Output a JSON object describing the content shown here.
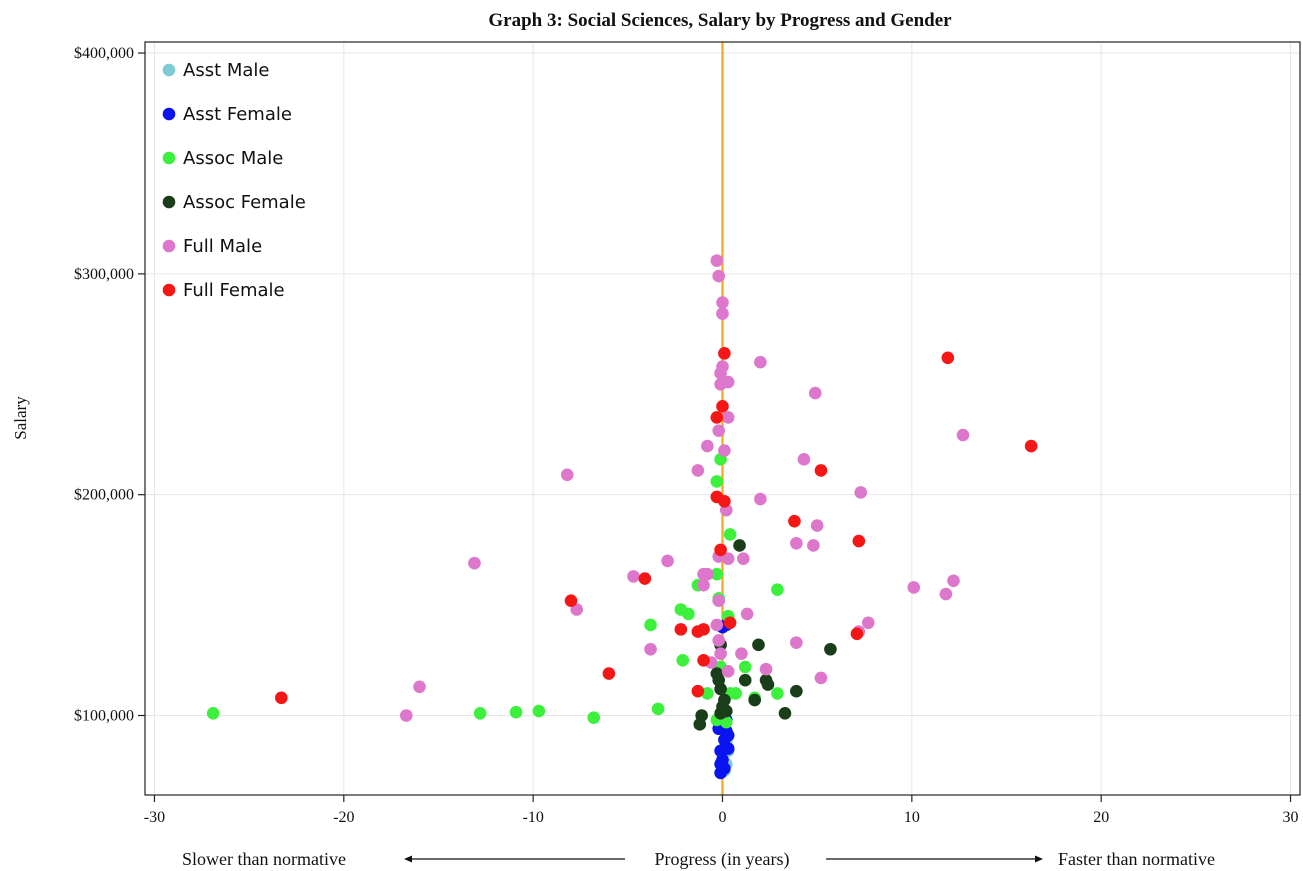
{
  "chart_data": {
    "type": "scatter",
    "title": "Graph 3: Social Sciences, Salary by Progress and Gender",
    "ylabel": "Salary",
    "xlabel": "Progress (in years)",
    "xlabel_left": "Slower than normative",
    "xlabel_right": "Faster than normative",
    "xlim": [
      -30.5,
      30.5
    ],
    "ylim": [
      64000,
      405000
    ],
    "x_ticks": [
      -30,
      -20,
      -10,
      0,
      10,
      20,
      30
    ],
    "x_tick_labels": [
      "-30",
      "-20",
      "-10",
      "0",
      "10",
      "20",
      "30"
    ],
    "y_ticks": [
      100000,
      200000,
      300000,
      400000
    ],
    "y_tick_labels": [
      "$100,000",
      "$200,000",
      "$300,000",
      "$400,000"
    ],
    "grid": true,
    "legend_position": "top-left",
    "reference_line": {
      "x": 0,
      "color": "#f5a623"
    },
    "series": [
      {
        "name": "Asst Male",
        "color": "#7ecbd3",
        "points": [
          [
            0.1,
            75000
          ],
          [
            0.2,
            78000
          ],
          [
            0.3,
            84000
          ],
          [
            0.2,
            88000
          ]
        ]
      },
      {
        "name": "Asst Female",
        "color": "#0a14f0",
        "points": [
          [
            0.0,
            140000
          ],
          [
            0.2,
            141000
          ],
          [
            -0.2,
            94000
          ],
          [
            0.2,
            93000
          ],
          [
            0.3,
            91000
          ],
          [
            0.1,
            89000
          ],
          [
            0.3,
            85000
          ],
          [
            -0.1,
            84000
          ],
          [
            0.0,
            80000
          ],
          [
            -0.1,
            78000
          ],
          [
            0.1,
            76000
          ],
          [
            -0.1,
            74000
          ],
          [
            0.2,
            98000
          ],
          [
            -0.2,
            97000
          ]
        ]
      },
      {
        "name": "Assoc Male",
        "color": "#3df03d",
        "points": [
          [
            -26.9,
            101000
          ],
          [
            -12.8,
            101000
          ],
          [
            -10.9,
            101500
          ],
          [
            -9.7,
            102000
          ],
          [
            -6.8,
            99000
          ],
          [
            -3.4,
            103000
          ],
          [
            -3.8,
            141000
          ],
          [
            -2.2,
            148000
          ],
          [
            -1.8,
            146000
          ],
          [
            -1.3,
            159000
          ],
          [
            -2.1,
            125000
          ],
          [
            -0.8,
            110000
          ],
          [
            -0.3,
            164000
          ],
          [
            -0.2,
            153000
          ],
          [
            0.3,
            145000
          ],
          [
            0.4,
            182000
          ],
          [
            -0.3,
            206000
          ],
          [
            -0.1,
            216000
          ],
          [
            2.9,
            157000
          ],
          [
            1.2,
            122000
          ],
          [
            0.7,
            110000
          ],
          [
            0.4,
            110000
          ],
          [
            1.7,
            108000
          ],
          [
            2.9,
            110000
          ],
          [
            -0.1,
            122000
          ],
          [
            0.2,
            97000
          ],
          [
            -0.3,
            98000
          ]
        ]
      },
      {
        "name": "Assoc Female",
        "color": "#1a3d1a",
        "points": [
          [
            0.9,
            177000
          ],
          [
            -0.1,
            132000
          ],
          [
            1.9,
            132000
          ],
          [
            5.7,
            130000
          ],
          [
            -0.3,
            119000
          ],
          [
            -0.2,
            116000
          ],
          [
            1.2,
            116000
          ],
          [
            2.3,
            116000
          ],
          [
            2.4,
            114000
          ],
          [
            3.9,
            111000
          ],
          [
            1.7,
            107000
          ],
          [
            3.3,
            101000
          ],
          [
            -0.1,
            112000
          ],
          [
            0.1,
            107000
          ],
          [
            -1.1,
            100000
          ],
          [
            -0.1,
            101000
          ],
          [
            0.2,
            102000
          ],
          [
            -1.2,
            96000
          ],
          [
            0.0,
            104000
          ]
        ]
      },
      {
        "name": "Full Male",
        "color": "#dd77cc",
        "points": [
          [
            -0.3,
            306000
          ],
          [
            -0.2,
            299000
          ],
          [
            0.0,
            287000
          ],
          [
            0.0,
            282000
          ],
          [
            0.0,
            258000
          ],
          [
            -0.1,
            255000
          ],
          [
            0.3,
            251000
          ],
          [
            -0.1,
            250000
          ],
          [
            2.0,
            260000
          ],
          [
            4.9,
            246000
          ],
          [
            0.3,
            235000
          ],
          [
            -0.2,
            229000
          ],
          [
            -0.8,
            222000
          ],
          [
            0.1,
            220000
          ],
          [
            -1.3,
            211000
          ],
          [
            4.3,
            216000
          ],
          [
            12.7,
            227000
          ],
          [
            -8.2,
            209000
          ],
          [
            7.3,
            201000
          ],
          [
            2.0,
            198000
          ],
          [
            0.2,
            193000
          ],
          [
            5.0,
            186000
          ],
          [
            3.9,
            178000
          ],
          [
            4.8,
            177000
          ],
          [
            0.3,
            171000
          ],
          [
            1.1,
            171000
          ],
          [
            -0.2,
            172000
          ],
          [
            -13.1,
            169000
          ],
          [
            -2.9,
            170000
          ],
          [
            -1.0,
            164000
          ],
          [
            -0.8,
            164000
          ],
          [
            -4.7,
            163000
          ],
          [
            -1.0,
            159000
          ],
          [
            10.1,
            158000
          ],
          [
            12.2,
            161000
          ],
          [
            11.8,
            155000
          ],
          [
            -7.7,
            148000
          ],
          [
            1.3,
            146000
          ],
          [
            7.2,
            138000
          ],
          [
            7.7,
            142000
          ],
          [
            -0.2,
            152000
          ],
          [
            -0.3,
            141000
          ],
          [
            -3.8,
            130000
          ],
          [
            -0.1,
            128000
          ],
          [
            0.3,
            120000
          ],
          [
            1.0,
            128000
          ],
          [
            2.3,
            121000
          ],
          [
            3.9,
            133000
          ],
          [
            5.2,
            117000
          ],
          [
            -16.0,
            113000
          ],
          [
            -16.7,
            100000
          ],
          [
            -0.2,
            134000
          ],
          [
            -0.6,
            124000
          ]
        ]
      },
      {
        "name": "Full Female",
        "color": "#f51616",
        "points": [
          [
            11.9,
            262000
          ],
          [
            16.3,
            222000
          ],
          [
            0.1,
            264000
          ],
          [
            0.0,
            240000
          ],
          [
            -0.3,
            235000
          ],
          [
            5.2,
            211000
          ],
          [
            -0.3,
            199000
          ],
          [
            0.1,
            197000
          ],
          [
            3.8,
            188000
          ],
          [
            7.2,
            179000
          ],
          [
            -0.1,
            175000
          ],
          [
            -4.1,
            162000
          ],
          [
            -8.0,
            152000
          ],
          [
            0.4,
            142000
          ],
          [
            -2.2,
            139000
          ],
          [
            -1.3,
            138000
          ],
          [
            -1.0,
            139000
          ],
          [
            7.1,
            137000
          ],
          [
            -1.0,
            125000
          ],
          [
            -6.0,
            119000
          ],
          [
            -1.3,
            111000
          ],
          [
            -23.3,
            108000
          ]
        ]
      }
    ]
  }
}
